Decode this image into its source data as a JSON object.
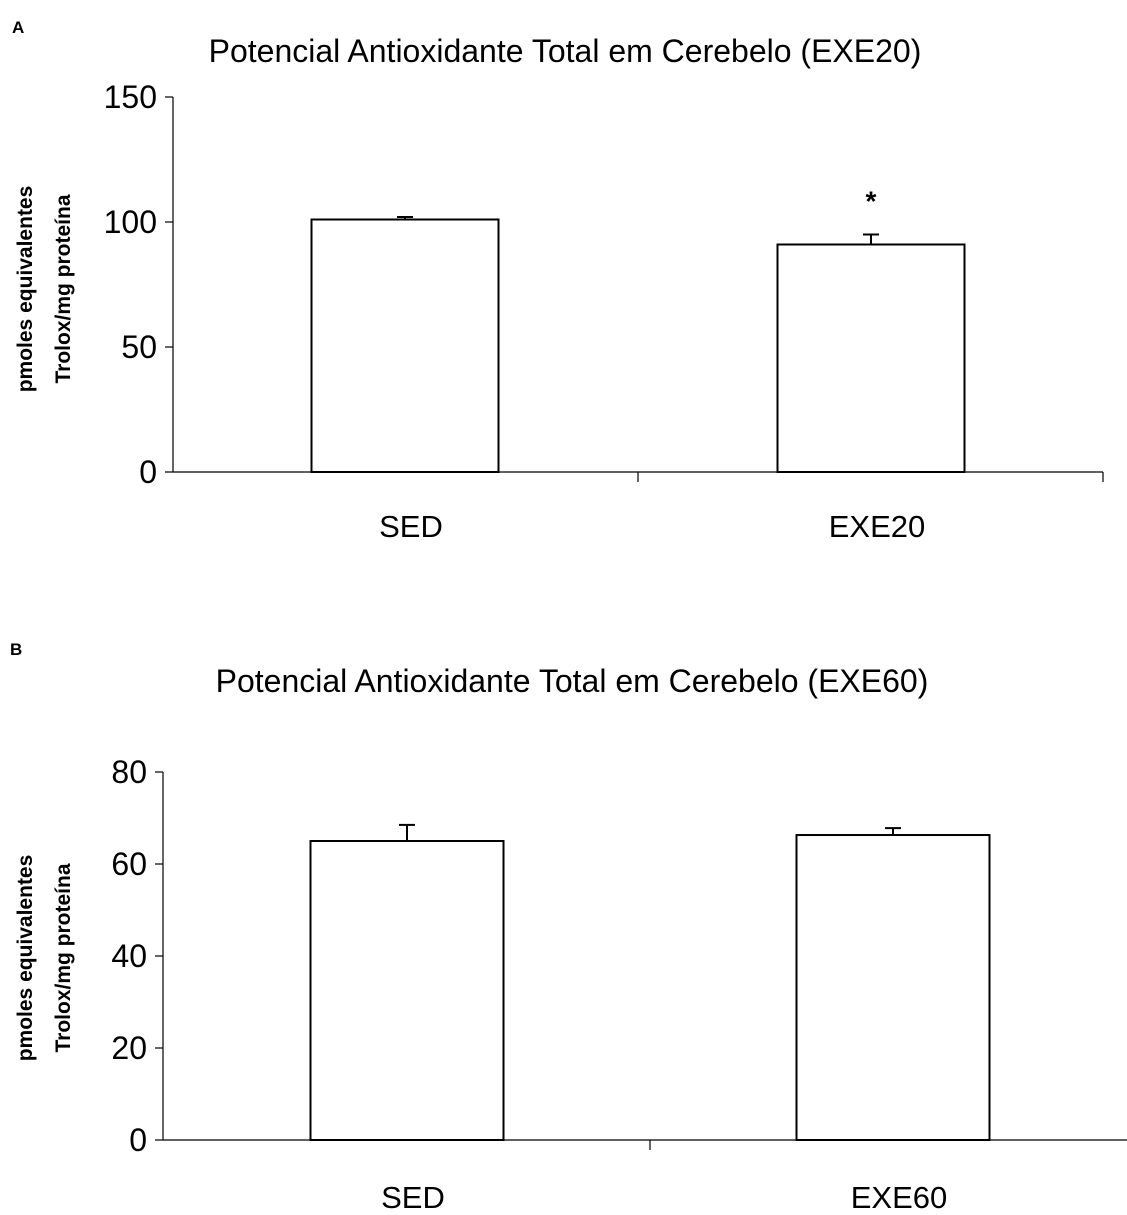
{
  "chart_data": [
    {
      "panel": "A",
      "type": "bar",
      "title": "Potencial Antioxidante Total em Cerebelo  (EXE20)",
      "ylabel_lines": [
        "pmoles equivalentes",
        "Trolox/mg proteína"
      ],
      "xlabel": "",
      "categories": [
        "SED",
        "EXE20"
      ],
      "values": [
        101,
        91
      ],
      "errors": [
        1,
        4
      ],
      "annotations": [
        "",
        "*"
      ],
      "ylim": [
        0,
        150
      ],
      "yticks": [
        0,
        50,
        100,
        150
      ],
      "grid": false,
      "legend": "none"
    },
    {
      "panel": "B",
      "type": "bar",
      "title": "Potencial Antioxidante Total em Cerebelo (EXE60)",
      "ylabel_lines": [
        "pmoles equivalentes",
        "Trolox/mg proteína"
      ],
      "xlabel": "",
      "categories": [
        "SED",
        "EXE60"
      ],
      "values": [
        65,
        66.3
      ],
      "errors": [
        3.5,
        1.5
      ],
      "annotations": [
        "",
        ""
      ],
      "ylim": [
        0,
        80
      ],
      "yticks": [
        0,
        20,
        40,
        60,
        80
      ],
      "grid": false,
      "legend": "none"
    }
  ]
}
